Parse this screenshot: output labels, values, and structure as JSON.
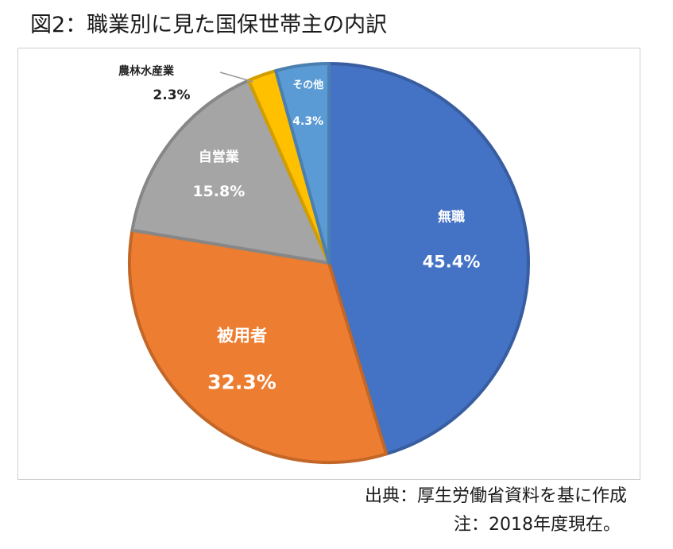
{
  "title": "図2：職業別に見た国保世帯主の内訳",
  "chart_data": {
    "type": "pie",
    "categories": [
      "無職",
      "被用者",
      "自営業",
      "農林水産業",
      "その他"
    ],
    "values": [
      45.4,
      32.3,
      15.8,
      2.3,
      4.3
    ],
    "value_labels": [
      "45.4%",
      "32.3%",
      "15.8%",
      "2.3%",
      "4.3%"
    ],
    "colors": [
      "#4472C4",
      "#ED7D31",
      "#A5A5A5",
      "#FFC000",
      "#5B9BD5"
    ],
    "start": "12 o'clock",
    "direction": "clockwise",
    "legend": "none"
  },
  "footer": {
    "source": "出典：厚生労働省資料を基に作成",
    "note": "注：2018年度現在。"
  }
}
